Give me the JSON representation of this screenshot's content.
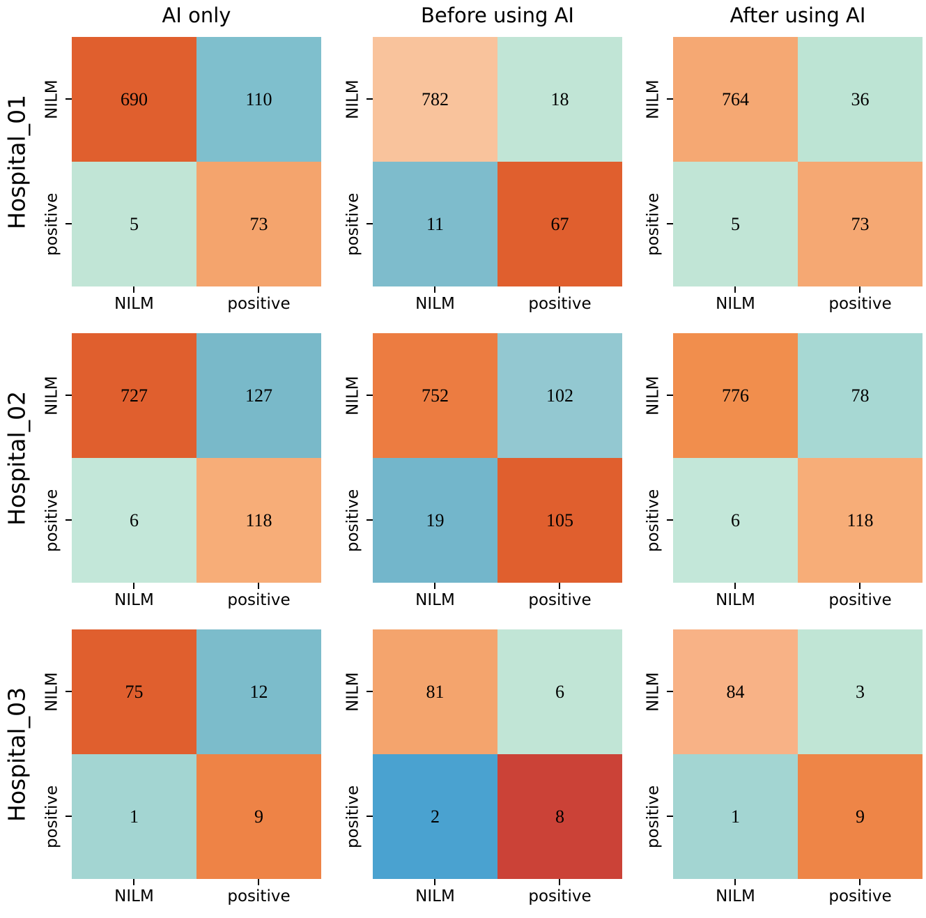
{
  "background": "#ffffff",
  "axis": {
    "x_ticks": [
      "NILM",
      "positive"
    ],
    "y_ticks": [
      "NILM",
      "positive"
    ]
  },
  "chart_data": [
    {
      "type": "heatmap",
      "row": "Hospital_01",
      "column": "AI only",
      "x_labels": [
        "NILM",
        "positive"
      ],
      "y_labels": [
        "NILM",
        "positive"
      ],
      "values": [
        [
          690,
          110
        ],
        [
          5,
          73
        ]
      ],
      "colors": [
        [
          "#e05f2e",
          "#7fbfcd"
        ],
        [
          "#c1e5d6",
          "#f4a46d"
        ]
      ]
    },
    {
      "type": "heatmap",
      "row": "Hospital_01",
      "column": "Before using AI",
      "x_labels": [
        "NILM",
        "positive"
      ],
      "y_labels": [
        "NILM",
        "positive"
      ],
      "values": [
        [
          782,
          18
        ],
        [
          11,
          67
        ]
      ],
      "colors": [
        [
          "#f9c39c",
          "#c1e5d6"
        ],
        [
          "#7ebccc",
          "#e05f2e"
        ]
      ]
    },
    {
      "type": "heatmap",
      "row": "Hospital_01",
      "column": "After using AI",
      "x_labels": [
        "NILM",
        "positive"
      ],
      "y_labels": [
        "NILM",
        "positive"
      ],
      "values": [
        [
          764,
          36
        ],
        [
          5,
          73
        ]
      ],
      "colors": [
        [
          "#f5a873",
          "#bde4d4"
        ],
        [
          "#c1e5d6",
          "#f5a873"
        ]
      ]
    },
    {
      "type": "heatmap",
      "row": "Hospital_02",
      "column": "AI only",
      "x_labels": [
        "NILM",
        "positive"
      ],
      "y_labels": [
        "NILM",
        "positive"
      ],
      "values": [
        [
          727,
          127
        ],
        [
          6,
          118
        ]
      ],
      "colors": [
        [
          "#e05f2e",
          "#79b9c9"
        ],
        [
          "#c3e7d9",
          "#f7ad78"
        ]
      ]
    },
    {
      "type": "heatmap",
      "row": "Hospital_02",
      "column": "Before using AI",
      "x_labels": [
        "NILM",
        "positive"
      ],
      "y_labels": [
        "NILM",
        "positive"
      ],
      "values": [
        [
          752,
          102
        ],
        [
          19,
          105
        ]
      ],
      "colors": [
        [
          "#ec7c41",
          "#93c8d1"
        ],
        [
          "#73b6cb",
          "#e05f2e"
        ]
      ]
    },
    {
      "type": "heatmap",
      "row": "Hospital_02",
      "column": "After using AI",
      "x_labels": [
        "NILM",
        "positive"
      ],
      "y_labels": [
        "NILM",
        "positive"
      ],
      "values": [
        [
          776,
          78
        ],
        [
          6,
          118
        ]
      ],
      "colors": [
        [
          "#f18e4d",
          "#a7d8d3"
        ],
        [
          "#c3e7d9",
          "#f7ad78"
        ]
      ]
    },
    {
      "type": "heatmap",
      "row": "Hospital_03",
      "column": "AI only",
      "x_labels": [
        "NILM",
        "positive"
      ],
      "y_labels": [
        "NILM",
        "positive"
      ],
      "values": [
        [
          75,
          12
        ],
        [
          1,
          9
        ]
      ],
      "colors": [
        [
          "#e05f2e",
          "#7cbccb"
        ],
        [
          "#a3d5d2",
          "#ee8346"
        ]
      ]
    },
    {
      "type": "heatmap",
      "row": "Hospital_03",
      "column": "Before using AI",
      "x_labels": [
        "NILM",
        "positive"
      ],
      "y_labels": [
        "NILM",
        "positive"
      ],
      "values": [
        [
          81,
          6
        ],
        [
          2,
          8
        ]
      ],
      "colors": [
        [
          "#f4a46d",
          "#c1e5d6"
        ],
        [
          "#4aa2d0",
          "#cb4237"
        ]
      ]
    },
    {
      "type": "heatmap",
      "row": "Hospital_03",
      "column": "After using AI",
      "x_labels": [
        "NILM",
        "positive"
      ],
      "y_labels": [
        "NILM",
        "positive"
      ],
      "values": [
        [
          84,
          3
        ],
        [
          1,
          9
        ]
      ],
      "colors": [
        [
          "#f8b286",
          "#c0e5d5"
        ],
        [
          "#a3d5d2",
          "#ee8547"
        ]
      ]
    }
  ]
}
